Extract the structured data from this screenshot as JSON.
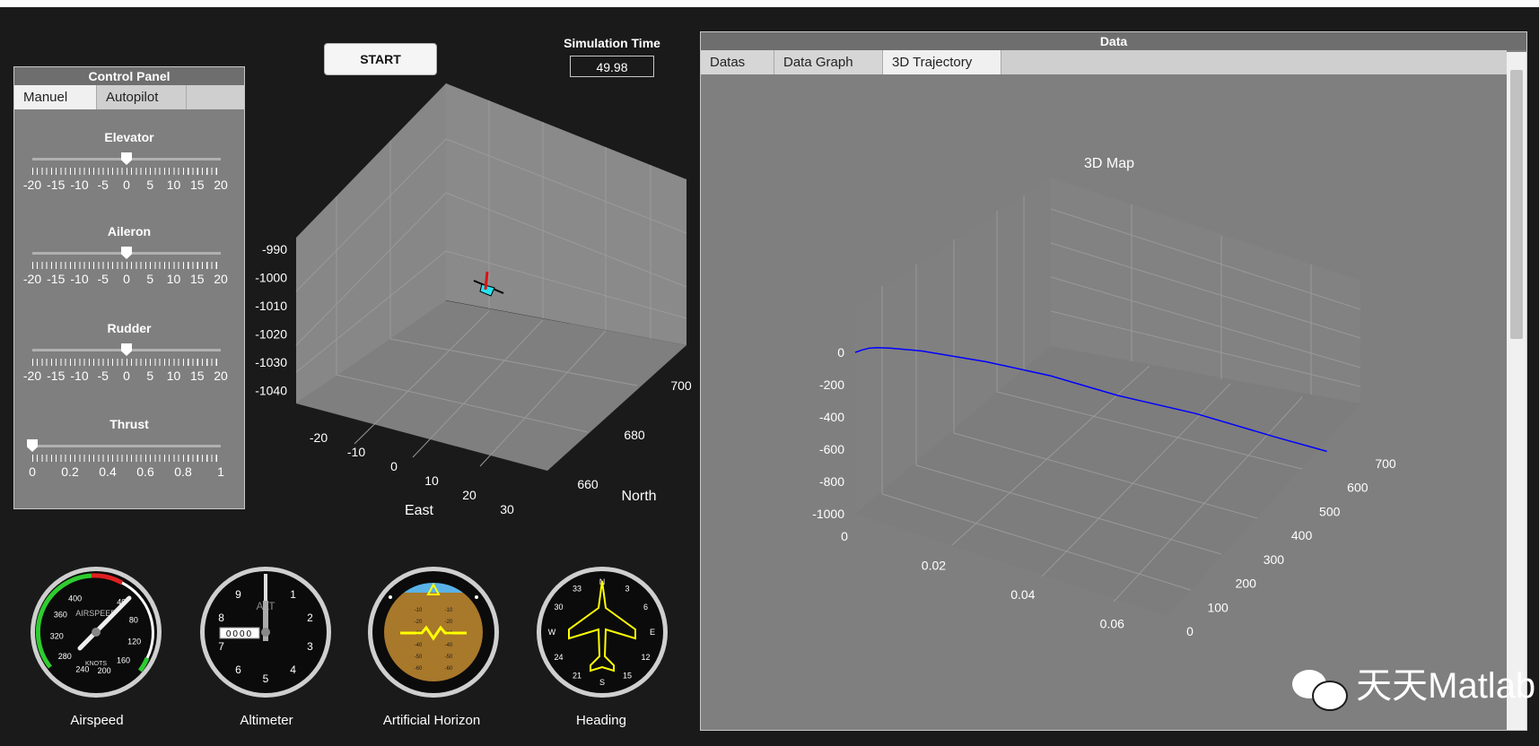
{
  "start_button": "START",
  "sim_time": {
    "label": "Simulation Time",
    "value": "49.98"
  },
  "control_panel": {
    "title": "Control Panel",
    "tabs": [
      "Manuel",
      "Autopilot"
    ],
    "sliders": [
      {
        "label": "Elevator",
        "ticks": [
          "-20",
          "-15",
          "-10",
          "-5",
          "0",
          "5",
          "10",
          "15",
          "20"
        ],
        "value": 0
      },
      {
        "label": "Aileron",
        "ticks": [
          "-20",
          "-15",
          "-10",
          "-5",
          "0",
          "5",
          "10",
          "15",
          "20"
        ],
        "value": 0
      },
      {
        "label": "Rudder",
        "ticks": [
          "-20",
          "-15",
          "-10",
          "-5",
          "0",
          "5",
          "10",
          "15",
          "20"
        ],
        "value": 0
      },
      {
        "label": "Thrust",
        "ticks": [
          "0",
          "0.2",
          "0.4",
          "0.6",
          "0.8",
          "1"
        ],
        "value": 0
      }
    ]
  },
  "view3d": {
    "z_ticks": [
      "-990",
      "-1000",
      "-1010",
      "-1020",
      "-1030",
      "-1040"
    ],
    "east_ticks": [
      "-20",
      "-10",
      "0",
      "10",
      "20",
      "30"
    ],
    "north_ticks": [
      "660",
      "680",
      "700"
    ],
    "east_label": "East",
    "north_label": "North"
  },
  "gauges": {
    "airspeed": {
      "label": "Airspeed",
      "face_top": "AIRSPEED",
      "face_bottom": "KNOTS",
      "scale": [
        "40",
        "80",
        "120",
        "160",
        "200",
        "240",
        "280",
        "320",
        "360",
        "400"
      ]
    },
    "altimeter": {
      "label": "Altimeter",
      "face": "ALT",
      "digits": "0000",
      "scale": [
        "1",
        "2",
        "3",
        "4",
        "5",
        "6",
        "7",
        "8",
        "9"
      ]
    },
    "horizon": {
      "label": "Artificial Horizon",
      "pitch_marks": [
        "10",
        "20",
        "30",
        "40",
        "50",
        "60"
      ]
    },
    "heading": {
      "label": "Heading",
      "scale": [
        "N",
        "3",
        "6",
        "E",
        "12",
        "15",
        "S",
        "21",
        "24",
        "W",
        "30",
        "33"
      ]
    }
  },
  "data_panel": {
    "title": "Data",
    "tabs": [
      "Datas",
      "Data Graph",
      "3D Trajectory"
    ],
    "selected_tab": "3D Trajectory"
  },
  "chart_data": {
    "type": "line",
    "title": "3D  Map",
    "z_ticks": [
      "0",
      "-200",
      "-400",
      "-600",
      "-800",
      "-1000"
    ],
    "x_ticks": [
      "0",
      "0.02",
      "0.04",
      "0.06"
    ],
    "y_ticks": [
      "0",
      "100",
      "200",
      "300",
      "400",
      "500",
      "600",
      "700"
    ],
    "series": [
      {
        "color": "#0000ff",
        "x": [
          0,
          0.001,
          0.002,
          0.003,
          0.005,
          0.01,
          0.02,
          0.03,
          0.04,
          0.05,
          0.06,
          0.065
        ],
        "y": [
          0,
          10,
          20,
          30,
          45,
          80,
          150,
          220,
          300,
          420,
          550,
          650
        ],
        "z": [
          0,
          10,
          15,
          12,
          5,
          -20,
          -100,
          -200,
          -350,
          -550,
          -800,
          -990
        ]
      }
    ]
  },
  "watermark": "天天Matlab"
}
